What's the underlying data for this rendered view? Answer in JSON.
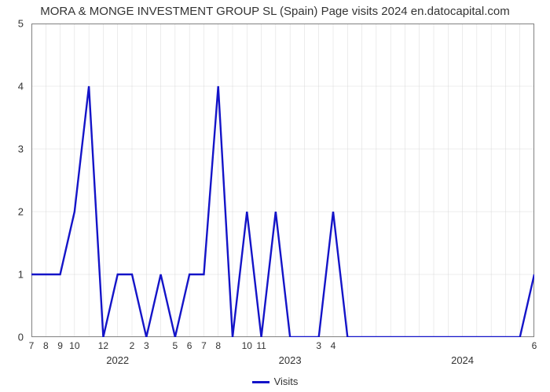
{
  "title": "MORA & MONGE INVESTMENT GROUP SL (Spain) Page visits 2024 en.datocapital.com",
  "chart": {
    "type": "line",
    "background_color": "#ffffff",
    "plot_border_color": "#808080",
    "plot_border_width": 1,
    "grid_color": "#d9d9d9",
    "grid_minor_color": "#d9d9d9",
    "grid_width": 0.5,
    "title_fontsize": 15,
    "title_color": "#333333",
    "axis_label_color": "#333333",
    "axis_tick_fontsize": 13,
    "y": {
      "min": 0,
      "max": 5,
      "ticks": [
        0,
        1,
        2,
        3,
        4,
        5
      ]
    },
    "x": {
      "n_points": 36,
      "month_labels": [
        {
          "i": 0,
          "text": "7"
        },
        {
          "i": 1,
          "text": "8"
        },
        {
          "i": 2,
          "text": "9"
        },
        {
          "i": 3,
          "text": "10"
        },
        {
          "i": 5,
          "text": "12"
        },
        {
          "i": 7,
          "text": "2"
        },
        {
          "i": 8,
          "text": "3"
        },
        {
          "i": 10,
          "text": "5"
        },
        {
          "i": 11,
          "text": "6"
        },
        {
          "i": 12,
          "text": "7"
        },
        {
          "i": 13,
          "text": "8"
        },
        {
          "i": 15,
          "text": "10"
        },
        {
          "i": 16,
          "text": "11"
        },
        {
          "i": 20,
          "text": "3"
        },
        {
          "i": 21,
          "text": "4"
        },
        {
          "i": 35,
          "text": "6"
        }
      ],
      "year_labels": [
        {
          "i": 6,
          "text": "2022"
        },
        {
          "i": 18,
          "text": "2023"
        },
        {
          "i": 30,
          "text": "2024"
        }
      ]
    },
    "series": {
      "name": "Visits",
      "color": "#1414c8",
      "line_width": 2.4,
      "values": [
        1,
        1,
        1,
        2,
        4,
        0,
        1,
        1,
        0,
        1,
        0,
        1,
        1,
        4,
        0,
        2,
        0,
        2,
        0,
        0,
        0,
        2,
        0,
        0,
        0,
        0,
        0,
        0,
        0,
        0,
        0,
        0,
        0,
        0,
        0,
        1
      ]
    },
    "legend": {
      "label": "Visits",
      "swatch_color": "#1414c8"
    }
  }
}
